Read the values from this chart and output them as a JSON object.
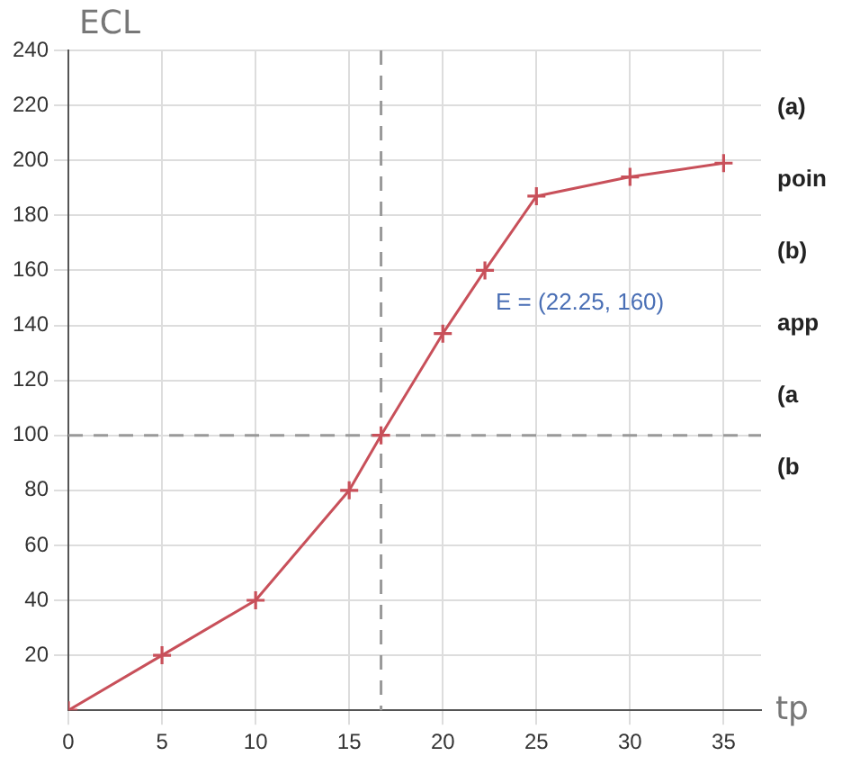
{
  "chart_data": {
    "type": "line",
    "ylabel": "ECL",
    "xlabel": "tp",
    "x": [
      0,
      5,
      10,
      15,
      16.7,
      20,
      22.25,
      25,
      30,
      35
    ],
    "series": [
      {
        "color": "#c8505a",
        "values": [
          0,
          20,
          40,
          80,
          100,
          137,
          160,
          187,
          194,
          199
        ]
      }
    ],
    "xlim": [
      0,
      37
    ],
    "xticks": [
      0,
      5,
      10,
      15,
      20,
      25,
      30,
      35
    ],
    "ylim": [
      0,
      240
    ],
    "yticks": [
      20,
      40,
      60,
      80,
      100,
      120,
      140,
      160,
      180,
      200,
      220,
      240
    ],
    "grid": true,
    "marker": "cross",
    "legend": false,
    "ref_lines": [
      {
        "axis": "y",
        "value": 100,
        "color": "#999999",
        "line_style": "dashed"
      },
      {
        "axis": "x",
        "value": 16.7,
        "color": "#999999",
        "line_style": "dashed"
      }
    ],
    "annotations": [
      {
        "text": "E = (22.25, 160)",
        "x": 22.25,
        "y": 160
      },
      "(a)",
      "poin",
      "(b)",
      "app",
      "(a",
      "(b"
    ]
  }
}
